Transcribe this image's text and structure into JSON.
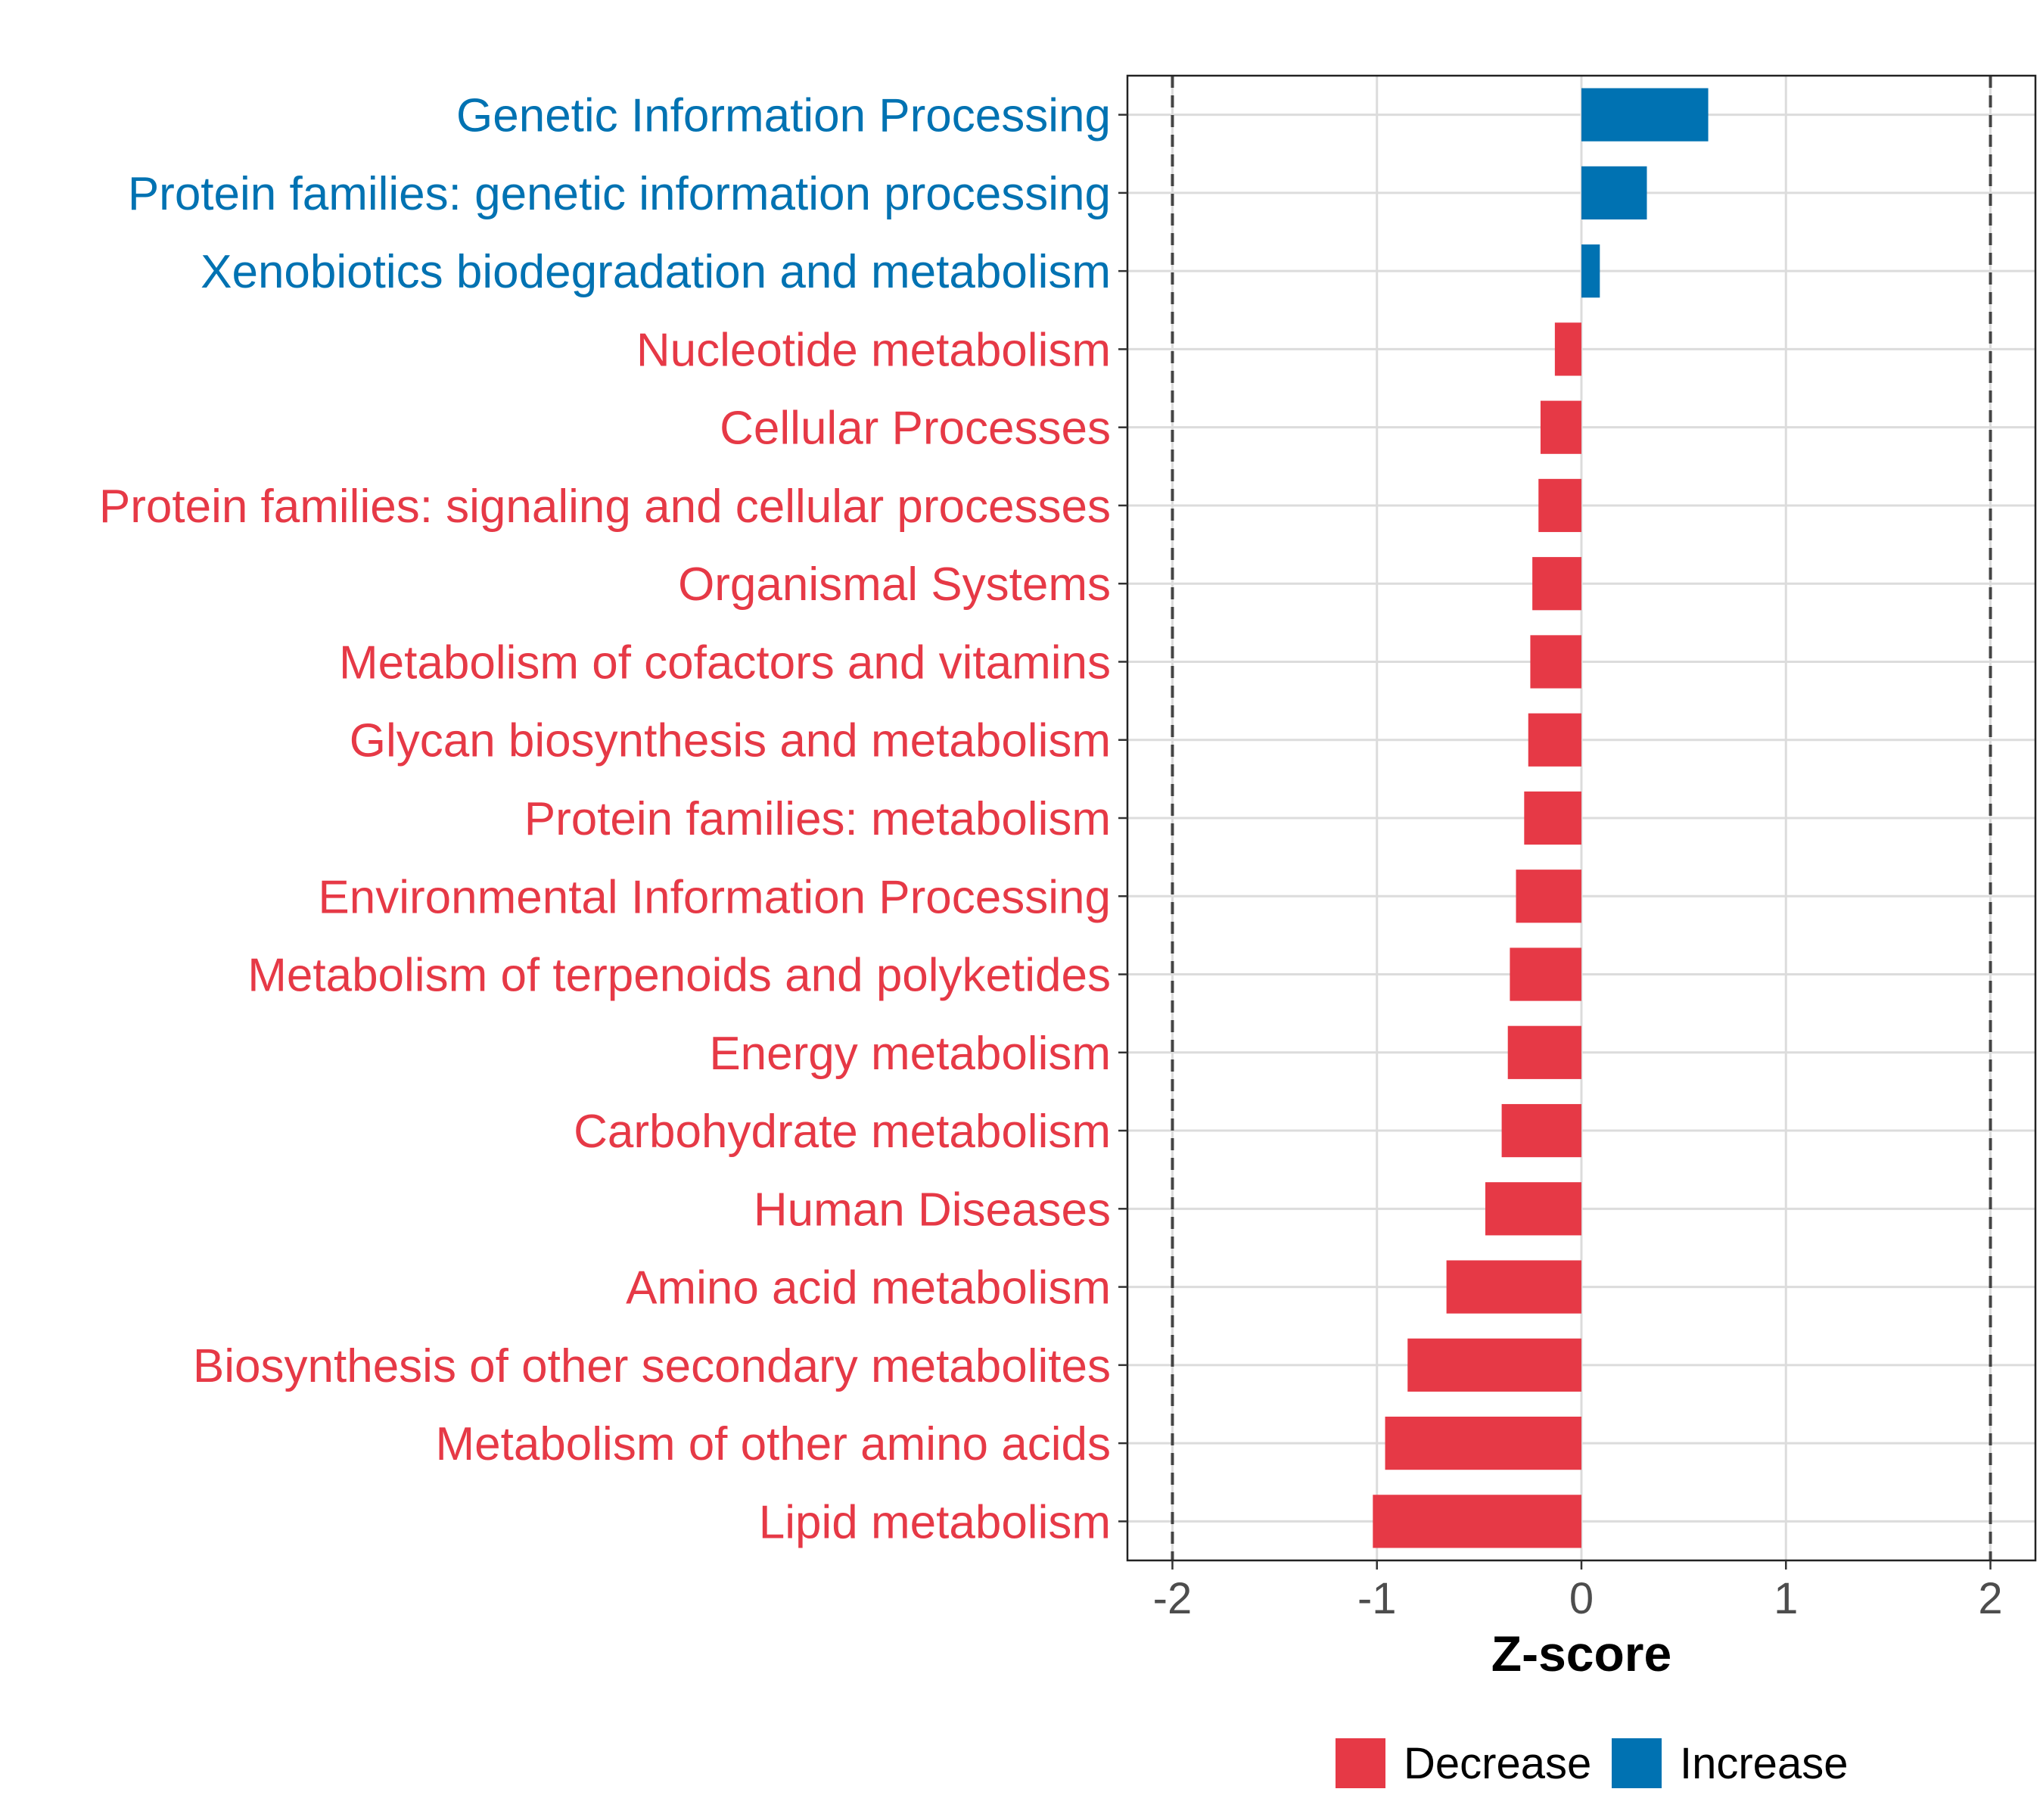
{
  "chart_data": {
    "type": "bar",
    "orientation": "horizontal",
    "title": "",
    "xlabel": "Z-score",
    "ylabel": "",
    "xlim": [
      -2.22,
      2.22
    ],
    "x_ticks": [
      -2,
      -1,
      0,
      1,
      2
    ],
    "x_tick_labels": [
      "-2",
      "-1",
      "0",
      "1",
      "2"
    ],
    "reference_lines": [
      -2,
      2
    ],
    "grid": true,
    "categories": [
      "Genetic Information Processing",
      "Protein families: genetic information processing",
      "Xenobiotics biodegradation and metabolism",
      "Nucleotide metabolism",
      "Cellular Processes",
      "Protein families: signaling and cellular processes",
      "Organismal Systems",
      "Metabolism of cofactors and vitamins",
      "Glycan biosynthesis and metabolism",
      "Protein families: metabolism",
      "Environmental Information Processing",
      "Metabolism of terpenoids and polyketides",
      "Energy metabolism",
      "Carbohydrate metabolism",
      "Human Diseases",
      "Amino acid metabolism",
      "Biosynthesis of other secondary metabolites",
      "Metabolism of other amino acids",
      "Lipid metabolism"
    ],
    "values": [
      0.62,
      0.32,
      0.09,
      -0.13,
      -0.2,
      -0.21,
      -0.24,
      -0.25,
      -0.26,
      -0.28,
      -0.32,
      -0.35,
      -0.36,
      -0.39,
      -0.47,
      -0.66,
      -0.85,
      -0.96,
      -1.02
    ],
    "groups": [
      "Increase",
      "Increase",
      "Increase",
      "Decrease",
      "Decrease",
      "Decrease",
      "Decrease",
      "Decrease",
      "Decrease",
      "Decrease",
      "Decrease",
      "Decrease",
      "Decrease",
      "Decrease",
      "Decrease",
      "Decrease",
      "Decrease",
      "Decrease",
      "Decrease"
    ],
    "legend": {
      "position": "bottom",
      "entries": [
        {
          "label": "Decrease",
          "color": "#E63946"
        },
        {
          "label": "Increase",
          "color": "#0072B2"
        }
      ]
    },
    "colors": {
      "Decrease": "#E63946",
      "Increase": "#0072B2"
    }
  }
}
